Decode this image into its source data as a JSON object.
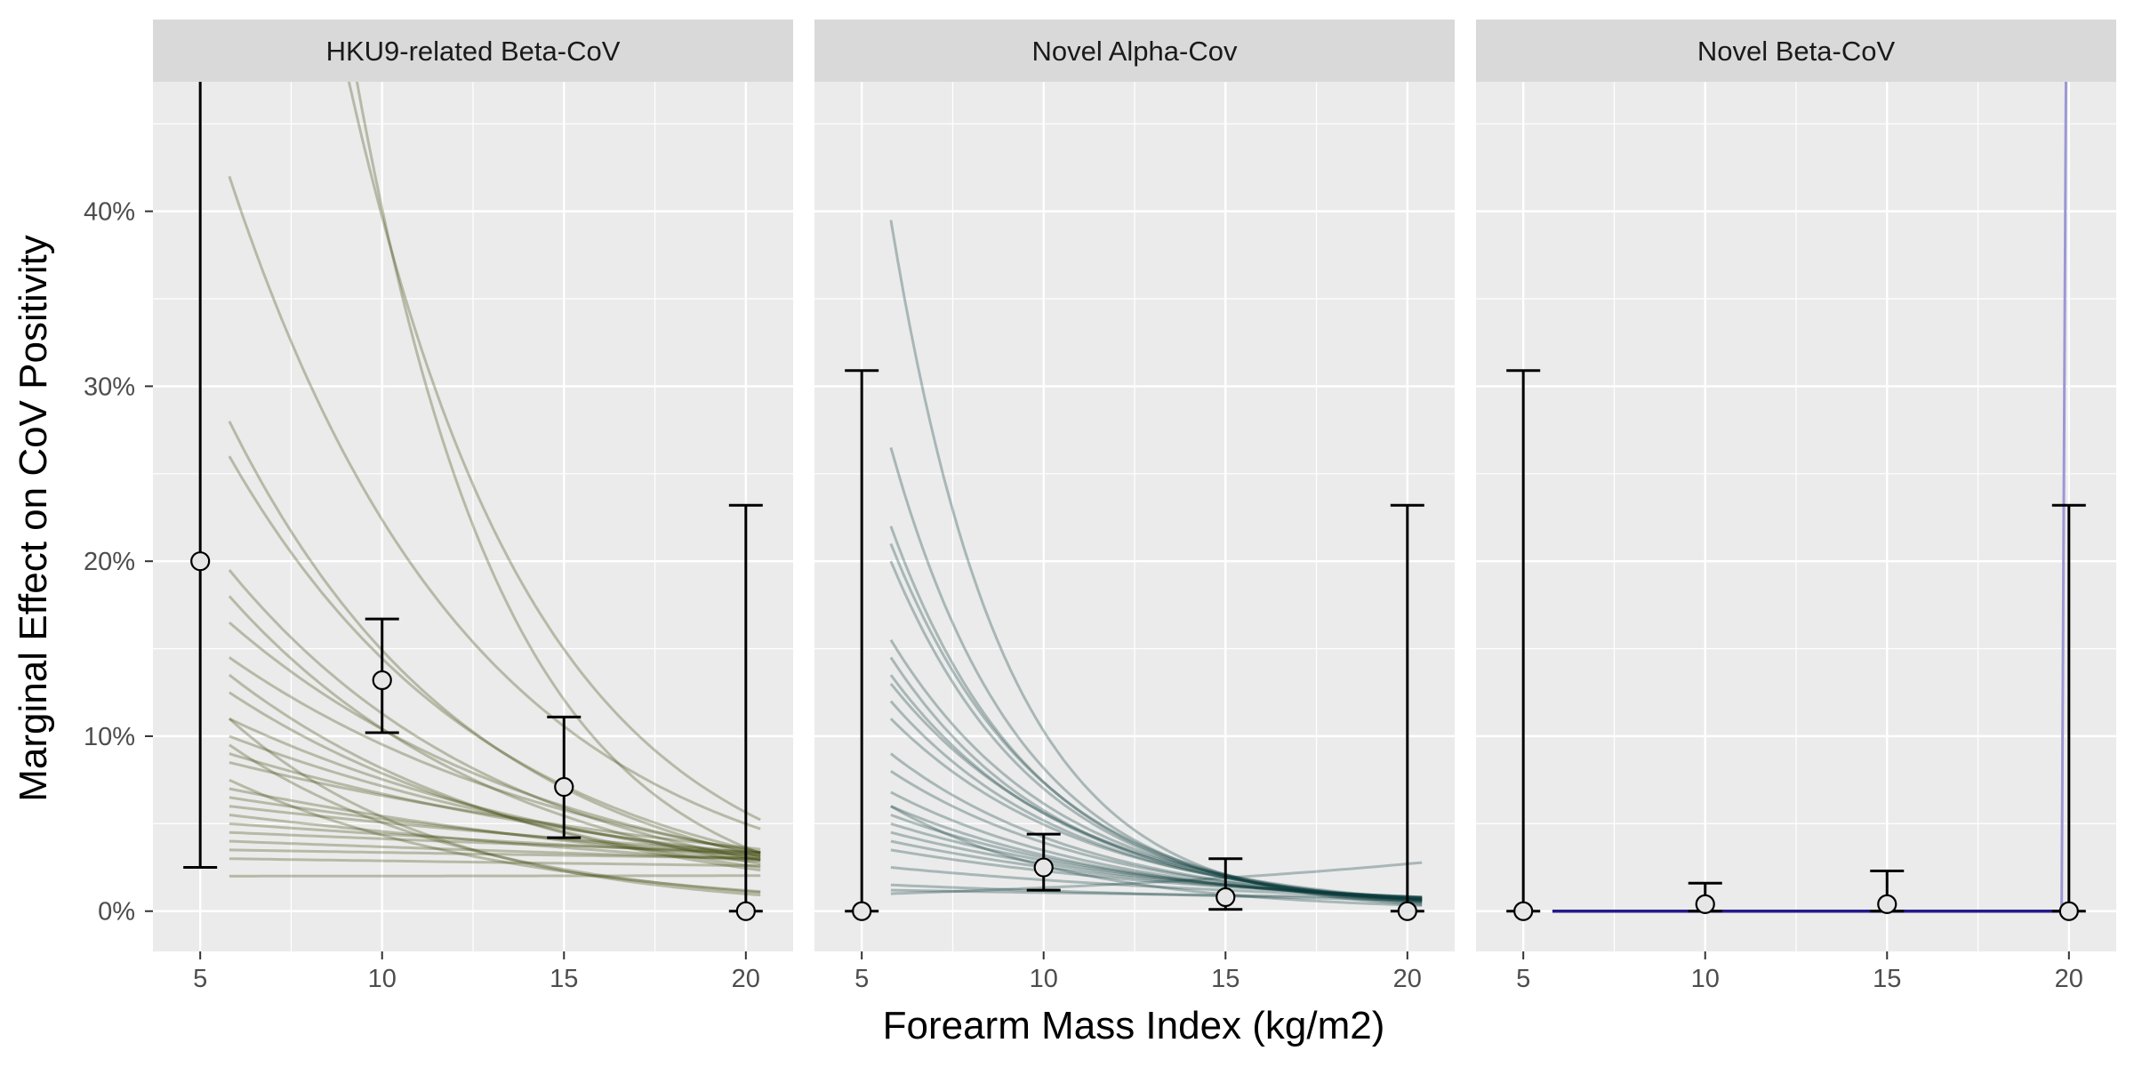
{
  "chart_data": {
    "type": "line",
    "xlabel": "Forearm Mass Index (kg/m2)",
    "ylabel": "Marginal Effect on CoV Positivity",
    "xlim": [
      3.7,
      21.3
    ],
    "ylim": [
      -0.023,
      0.474
    ],
    "x_ticks": [
      5,
      10,
      15,
      20
    ],
    "x_tick_labels": [
      "5",
      "10",
      "15",
      "20"
    ],
    "y_ticks": [
      0,
      0.1,
      0.2,
      0.3,
      0.4
    ],
    "y_tick_labels": [
      "0%",
      "10%",
      "20%",
      "30%",
      "40%"
    ],
    "grid": true,
    "panels": [
      {
        "strip": "HKU9-related Beta-CoV",
        "curve_color": "#3d4407",
        "curve_opacity": 0.3,
        "curve_x_range": [
          5.8,
          20.4
        ],
        "curves": [
          {
            "a": 0.9,
            "k": 0.195
          },
          {
            "a": 1.1,
            "k": 0.24
          },
          {
            "a": 0.42,
            "k": 0.15
          },
          {
            "a": 0.28,
            "k": 0.15
          },
          {
            "a": 0.26,
            "k": 0.14
          },
          {
            "a": 0.195,
            "k": 0.13
          },
          {
            "a": 0.18,
            "k": 0.13
          },
          {
            "a": 0.165,
            "k": 0.11
          },
          {
            "a": 0.145,
            "k": 0.1
          },
          {
            "a": 0.135,
            "k": 0.12
          },
          {
            "a": 0.125,
            "k": 0.11
          },
          {
            "a": 0.11,
            "k": 0.09
          },
          {
            "a": 0.1,
            "k": 0.08
          },
          {
            "a": 0.09,
            "k": 0.07
          },
          {
            "a": 0.085,
            "k": 0.06
          },
          {
            "a": 0.07,
            "k": 0.06
          },
          {
            "a": 0.065,
            "k": 0.05
          },
          {
            "a": 0.06,
            "k": 0.04
          },
          {
            "a": 0.055,
            "k": 0.045
          },
          {
            "a": 0.05,
            "k": 0.03
          },
          {
            "a": 0.045,
            "k": 0.02
          },
          {
            "a": 0.04,
            "k": 0.02
          },
          {
            "a": 0.035,
            "k": 0.01
          },
          {
            "a": 0.03,
            "k": 0.01
          },
          {
            "a": 0.02,
            "k": -0.001
          },
          {
            "a": 0.11,
            "k": 0.17
          },
          {
            "a": 0.095,
            "k": 0.15
          },
          {
            "a": 0.075,
            "k": 0.13
          }
        ],
        "points": [
          {
            "x": 5,
            "y": 0.2,
            "lo": 0.025,
            "hi": 0.48
          },
          {
            "x": 10,
            "y": 0.132,
            "lo": 0.102,
            "hi": 0.167
          },
          {
            "x": 15,
            "y": 0.071,
            "lo": 0.042,
            "hi": 0.111
          },
          {
            "x": 20,
            "y": 0.0,
            "lo": 0.0,
            "hi": 0.232
          }
        ]
      },
      {
        "strip": "Novel Alpha-Cov",
        "curve_color": "#0d3d3a",
        "curve_opacity": 0.3,
        "curve_x_range": [
          5.8,
          20.4
        ],
        "curves": [
          {
            "a": 0.395,
            "k": 0.32
          },
          {
            "a": 0.265,
            "k": 0.28
          },
          {
            "a": 0.22,
            "k": 0.26
          },
          {
            "a": 0.21,
            "k": 0.25
          },
          {
            "a": 0.2,
            "k": 0.25
          },
          {
            "a": 0.155,
            "k": 0.22
          },
          {
            "a": 0.145,
            "k": 0.22
          },
          {
            "a": 0.135,
            "k": 0.21
          },
          {
            "a": 0.13,
            "k": 0.2
          },
          {
            "a": 0.12,
            "k": 0.2
          },
          {
            "a": 0.11,
            "k": 0.19
          },
          {
            "a": 0.09,
            "k": 0.18
          },
          {
            "a": 0.08,
            "k": 0.17
          },
          {
            "a": 0.068,
            "k": 0.16
          },
          {
            "a": 0.06,
            "k": 0.15
          },
          {
            "a": 0.055,
            "k": 0.14
          },
          {
            "a": 0.05,
            "k": 0.13
          },
          {
            "a": 0.045,
            "k": 0.12
          },
          {
            "a": 0.04,
            "k": 0.11
          },
          {
            "a": 0.035,
            "k": 0.1
          },
          {
            "a": 0.025,
            "k": 0.08
          },
          {
            "a": 0.015,
            "k": 0.06
          },
          {
            "a": 0.01,
            "k": -0.07
          },
          {
            "a": 0.012,
            "k": 0.03
          },
          {
            "a": 0.06,
            "k": 0.2
          }
        ],
        "points": [
          {
            "x": 5,
            "y": 0.0,
            "lo": 0.0,
            "hi": 0.309
          },
          {
            "x": 10,
            "y": 0.025,
            "lo": 0.012,
            "hi": 0.044
          },
          {
            "x": 15,
            "y": 0.008,
            "lo": 0.001,
            "hi": 0.03
          },
          {
            "x": 20,
            "y": 0.0,
            "lo": 0.0,
            "hi": 0.232
          }
        ]
      },
      {
        "strip": "Novel Beta-CoV",
        "curve_color": "#241a8a",
        "curve_opacity": 1.0,
        "flat_line": {
          "x": [
            5.8,
            19.8
          ],
          "y": 0
        },
        "spike_line": {
          "x": [
            19.8,
            19.92
          ],
          "y": [
            0,
            0.48
          ],
          "color": "#9c97d4"
        },
        "points": [
          {
            "x": 5,
            "y": 0.0,
            "lo": 0.0,
            "hi": 0.309
          },
          {
            "x": 10,
            "y": 0.004,
            "lo": 0.0,
            "hi": 0.016
          },
          {
            "x": 15,
            "y": 0.004,
            "lo": 0.0,
            "hi": 0.023
          },
          {
            "x": 20,
            "y": 0.0,
            "lo": 0.0,
            "hi": 0.232
          }
        ]
      }
    ]
  }
}
